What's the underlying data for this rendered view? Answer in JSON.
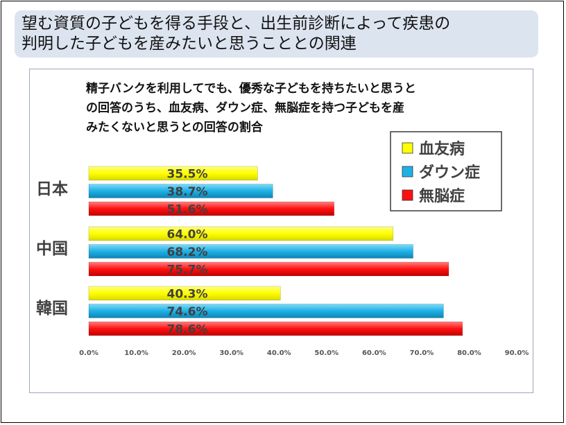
{
  "slide": {
    "title_lines": [
      "望む資質の子どもを得る手段と、出生前診断によって疾患の",
      "判明した子どもを産みたいと思うこととの関連"
    ]
  },
  "chart_data": {
    "type": "bar",
    "orientation": "horizontal",
    "title_lines": [
      "精子バンクを利用してでも、優秀な子どもを持ちたいと思うと",
      "の回答のうち、血友病、ダウン症、無脳症を持つ子どもを産",
      "みたくないと思うとの回答の割合"
    ],
    "categories": [
      "日本",
      "中国",
      "韓国"
    ],
    "series": [
      {
        "name": "血友病",
        "color": "#ffff00",
        "values": [
          35.5,
          64.0,
          40.3
        ],
        "labels": [
          "35.5%",
          "64.0%",
          "40.3%"
        ]
      },
      {
        "name": "ダウン症",
        "color": "#1fb1e6",
        "values": [
          38.7,
          68.2,
          74.6
        ],
        "labels": [
          "38.7%",
          "68.2%",
          "74.6%"
        ]
      },
      {
        "name": "無脳症",
        "color": "#ff1010",
        "values": [
          51.6,
          75.7,
          78.6
        ],
        "labels": [
          "51.6%",
          "75.7%",
          "78.6%"
        ]
      }
    ],
    "xlim": [
      0,
      90
    ],
    "xticks": [
      "0.0%",
      "10.0%",
      "20.0%",
      "30.0%",
      "40.0%",
      "50.0%",
      "60.0%",
      "70.0%",
      "80.0%",
      "90.0%"
    ],
    "legend_position": "top-right",
    "grid": false
  }
}
